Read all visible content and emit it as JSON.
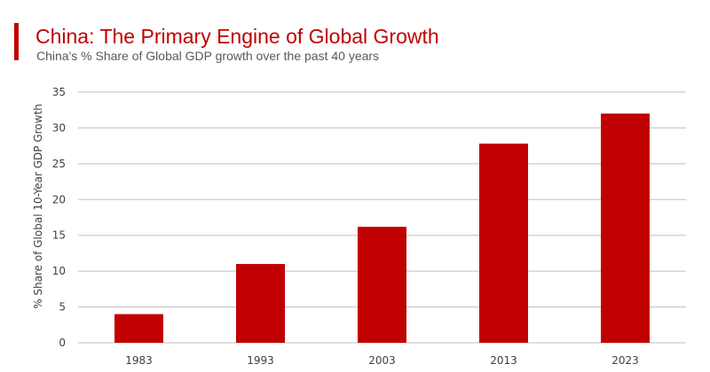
{
  "header": {
    "title": "China: The Primary Engine of Global Growth",
    "subtitle": "China's % Share of Global GDP growth over the past 40 years"
  },
  "chart_data": {
    "type": "bar",
    "categories": [
      "1983",
      "1993",
      "2003",
      "2013",
      "2023"
    ],
    "values": [
      4,
      11,
      16.2,
      27.8,
      32
    ],
    "title": "China: The Primary Engine of Global Growth",
    "subtitle": "China's % Share of Global GDP growth over the past 40 years",
    "xlabel": "",
    "ylabel": "% Share of Global 10-Year GDP Growth",
    "ylim": [
      0,
      35
    ],
    "yticks": [
      0,
      5,
      10,
      15,
      20,
      25,
      30,
      35
    ],
    "grid": true,
    "legend": "none",
    "bar_color": "#c00000",
    "grid_color": "#bfbfbf"
  }
}
